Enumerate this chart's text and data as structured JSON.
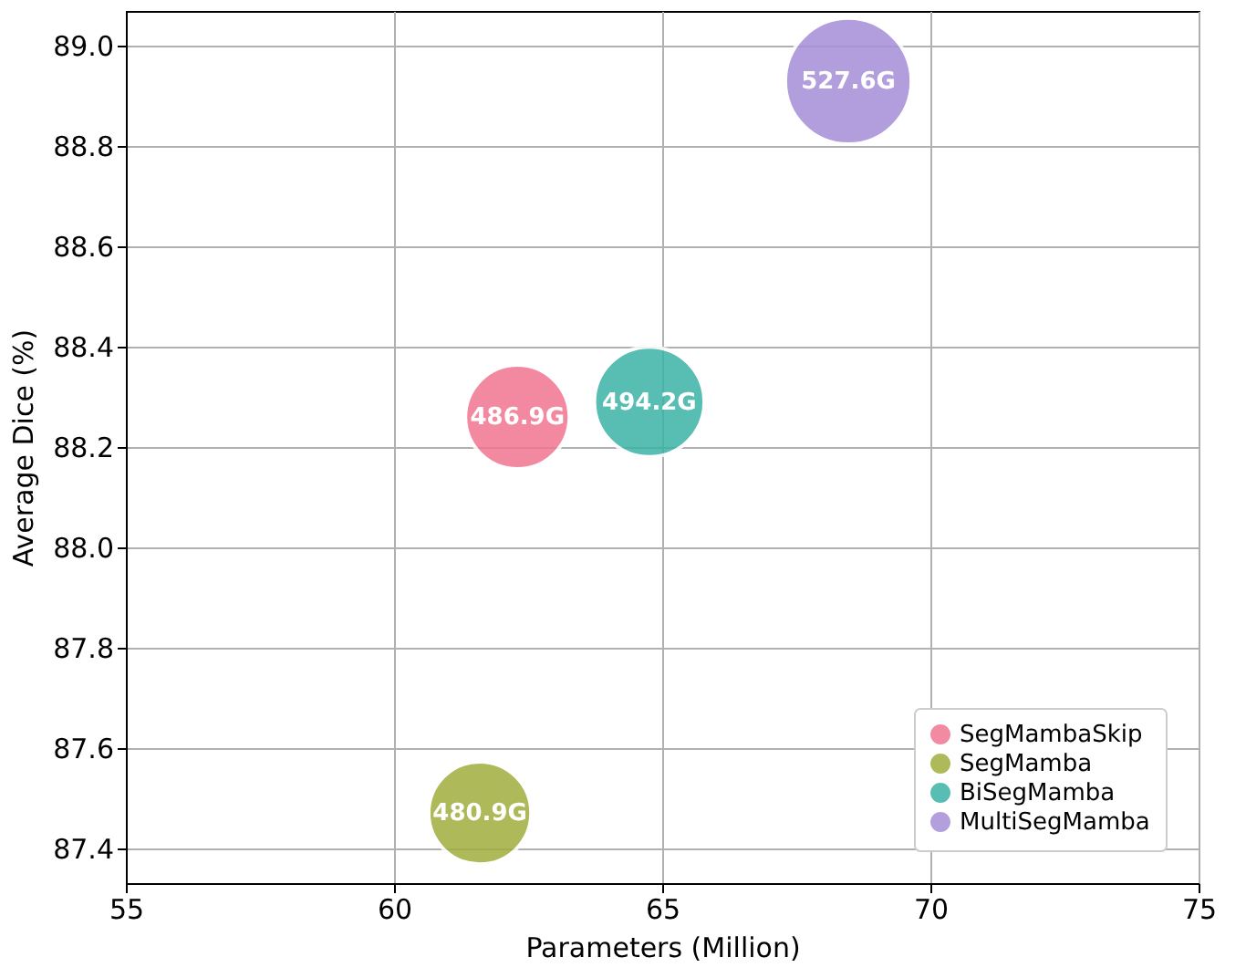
{
  "chart_data": {
    "type": "bubble",
    "xlabel": "Parameters (Million)",
    "ylabel": "Average Dice (%)",
    "xlim": [
      55,
      75
    ],
    "xticks": [
      55,
      60,
      65,
      70,
      75
    ],
    "ylim": [
      87.33,
      89.07
    ],
    "yticks": [
      87.4,
      87.6,
      87.8,
      {
        "value": 88,
        "label": "88.0"
      },
      88.2,
      88.4,
      88.6,
      88.8,
      {
        "value": 89,
        "label": "89.0"
      }
    ],
    "grid": true,
    "legend": "bottom right",
    "series": [
      {
        "name": "SegMambaSkip",
        "color": "#f07590",
        "x": [
          62.3
        ],
        "values": [
          88.26
        ],
        "sizes": [
          0.68
        ]
      },
      {
        "name": "SegMamba",
        "color": "#a0ad3d",
        "x": [
          61.6
        ],
        "values": [
          87.47
        ],
        "sizes": [
          0.66
        ]
      },
      {
        "name": "BiSegMamba",
        "color": "#3bb2a5",
        "x": [
          64.76
        ],
        "values": [
          88.29
        ],
        "sizes": [
          0.76
        ]
      },
      {
        "name": "MultiSegMamba",
        "color": "#a58ed6",
        "x": [
          68.47
        ],
        "values": [
          88.93
        ],
        "sizes": [
          1
        ]
      }
    ],
    "annotations": [
      {
        "text": "486.9G",
        "x": 62.3,
        "y": 88.26
      },
      {
        "text": "480.9G",
        "x": 61.6,
        "y": 87.47
      },
      {
        "text": "494.2G",
        "x": 64.76,
        "y": 88.29
      },
      {
        "text": "527.6G",
        "x": 68.47,
        "y": 88.93
      }
    ]
  }
}
